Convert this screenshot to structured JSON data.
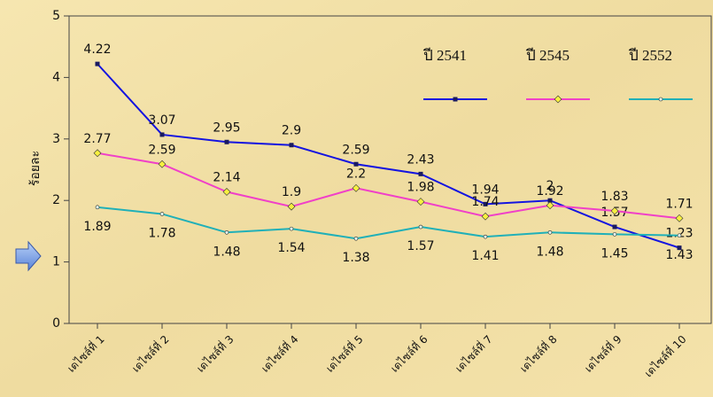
{
  "chart_data": {
    "type": "line",
    "y_label": "ร้อยละ",
    "categories": [
      "เดไซล์ที่ 1",
      "เดไซล์ที่ 2",
      "เดไซล์ที่ 3",
      "เดไซล์ที่ 4",
      "เดไซล์ที่ 5",
      "เดไซล์ที่ 6",
      "เดไซล์ที่ 7",
      "เดไซล์ที่ 8",
      "เดไซล์ที่ 9",
      "เดไซล์ที่ 10"
    ],
    "series": [
      {
        "name": "ปี 2541",
        "color": "#1414e0",
        "marker": "square",
        "values": [
          4.22,
          3.07,
          2.95,
          2.9,
          2.59,
          2.43,
          1.94,
          2,
          1.57,
          1.23
        ]
      },
      {
        "name": "ปี 2545",
        "color": "#f040c8",
        "marker": "diamond",
        "values": [
          2.77,
          2.59,
          2.14,
          1.9,
          2.2,
          1.98,
          1.74,
          1.92,
          1.83,
          1.71
        ]
      },
      {
        "name": "ปี 2552",
        "color": "#20b0b8",
        "marker": "circle",
        "values": [
          1.89,
          1.78,
          1.48,
          1.54,
          1.38,
          1.57,
          1.41,
          1.48,
          1.45,
          1.43
        ]
      }
    ],
    "ylim": [
      0,
      5
    ],
    "yticks": [
      0,
      1,
      2,
      3,
      4,
      5
    ],
    "grid": false
  }
}
